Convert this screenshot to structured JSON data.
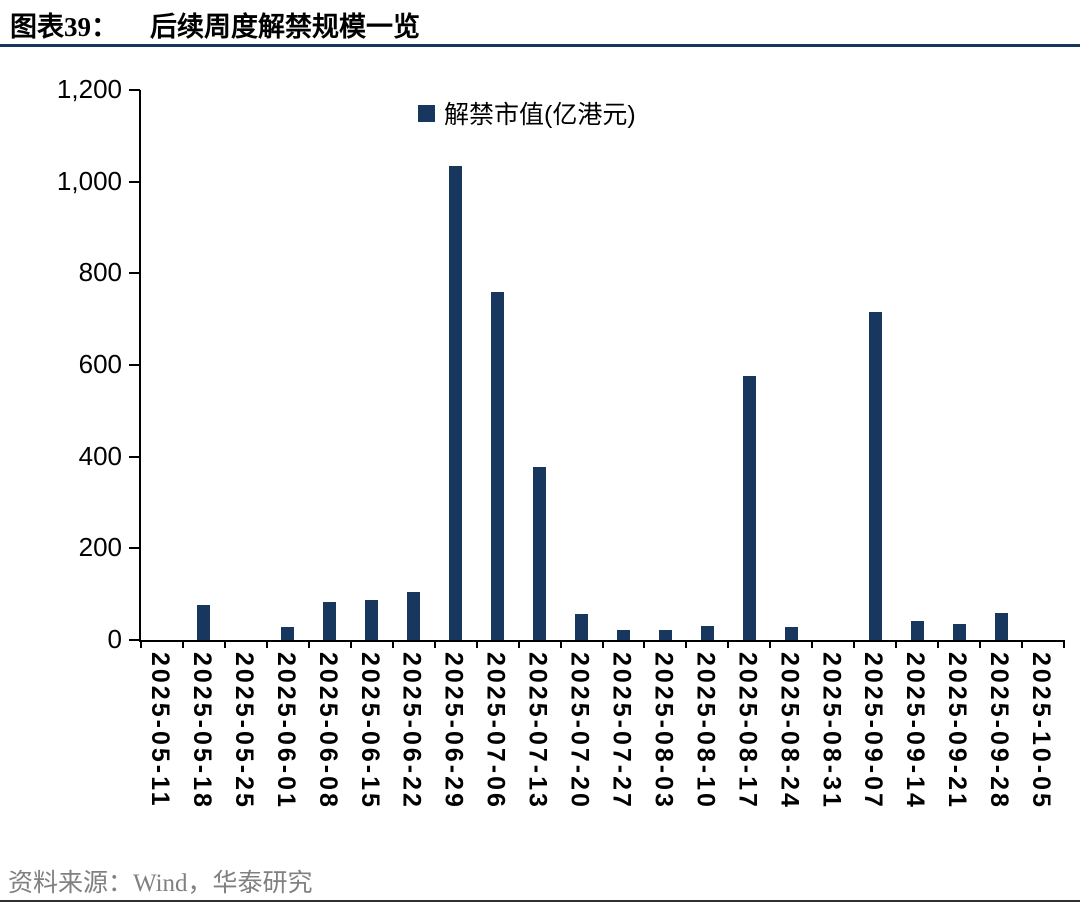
{
  "header": {
    "label": "图表39：",
    "title": "后续周度解禁规模一览"
  },
  "chart_data": {
    "type": "bar",
    "title": "后续周度解禁规模一览",
    "legend": "解禁市值(亿港元)",
    "legend_position": "top-center",
    "grid": false,
    "xlabel": "",
    "ylabel": "",
    "ylim": [
      0,
      1200
    ],
    "bar_color": "#17375e",
    "yticks": [
      {
        "label": "1,200",
        "value": 1200
      },
      {
        "label": "1,000",
        "value": 1000
      },
      {
        "label": "800",
        "value": 800
      },
      {
        "label": "600",
        "value": 600
      },
      {
        "label": "400",
        "value": 400
      },
      {
        "label": "200",
        "value": 200
      },
      {
        "label": "0",
        "value": 0
      }
    ],
    "categories": [
      "2025-05-11",
      "2025-05-18",
      "2025-05-25",
      "2025-06-01",
      "2025-06-08",
      "2025-06-15",
      "2025-06-22",
      "2025-06-29",
      "2025-07-06",
      "2025-07-13",
      "2025-07-20",
      "2025-07-27",
      "2025-08-03",
      "2025-08-10",
      "2025-08-17",
      "2025-08-24",
      "2025-08-31",
      "2025-09-07",
      "2025-09-14",
      "2025-09-21",
      "2025-09-28",
      "2025-10-05"
    ],
    "values": [
      0,
      76,
      0,
      28,
      84,
      88,
      105,
      1035,
      760,
      377,
      57,
      21,
      21,
      31,
      575,
      28,
      0,
      716,
      42,
      35,
      60,
      0
    ]
  },
  "footer": {
    "source": "资料来源：Wind，华泰研究"
  },
  "colors": {
    "accent": "#17375e",
    "rule": "#17375e",
    "axis": "#000000",
    "source_text": "#808080"
  }
}
